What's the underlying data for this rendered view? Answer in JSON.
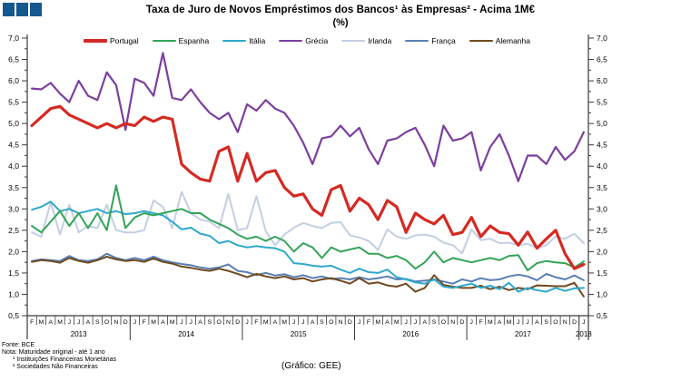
{
  "logo_color": "#15578F",
  "title": {
    "line1": "Taxa de Juro de Novos Empréstimos dos Bancos¹ às Empresas² - Acima 1M€",
    "line2": "(%)"
  },
  "footer": {
    "fonte": "Fonte: BCE",
    "nota": "Nota: Maturidade original - até 1 ano",
    "nota1": "¹ Instituições Financeiras Monetárias",
    "nota2": "² Sociedades Não Financeiras",
    "grafico": "(Gráfico: GEE)"
  },
  "chart_data": {
    "type": "line",
    "title": "Taxa de Juro de Novos Empréstimos dos Bancos às Empresas - Acima 1M€ (%)",
    "ylabel": "",
    "xlabel": "",
    "ylim": [
      0.5,
      7.0
    ],
    "y_step": 0.5,
    "y_axis_sides": "both",
    "decimal_separator": ",",
    "grid": false,
    "legend_position": "top",
    "categories": [
      "F",
      "M",
      "A",
      "M",
      "J",
      "J",
      "A",
      "S",
      "O",
      "N",
      "D",
      "J",
      "F",
      "M",
      "A",
      "M",
      "J",
      "J",
      "A",
      "S",
      "O",
      "N",
      "D",
      "J",
      "F",
      "M",
      "A",
      "M",
      "J",
      "J",
      "A",
      "S",
      "O",
      "N",
      "D",
      "J",
      "F",
      "M",
      "A",
      "M",
      "J",
      "J",
      "A",
      "S",
      "O",
      "N",
      "D",
      "J",
      "F",
      "M",
      "A",
      "M",
      "J",
      "J",
      "A",
      "S",
      "O",
      "N",
      "D",
      "J"
    ],
    "year_groups": [
      {
        "label": "2013",
        "months": 11
      },
      {
        "label": "2014",
        "months": 12
      },
      {
        "label": "2015",
        "months": 12
      },
      {
        "label": "2016",
        "months": 12
      },
      {
        "label": "2017",
        "months": 12
      },
      {
        "label": "2018",
        "months": 1
      }
    ],
    "series": [
      {
        "name": "Portugal",
        "color": "#D42A22",
        "width": 3.2,
        "values": [
          4.95,
          5.15,
          5.35,
          5.4,
          5.2,
          5.1,
          5.0,
          4.9,
          5.0,
          4.9,
          5.0,
          4.95,
          5.15,
          5.05,
          5.15,
          5.1,
          4.05,
          3.85,
          3.7,
          3.65,
          4.35,
          4.45,
          3.65,
          4.3,
          3.65,
          3.85,
          3.9,
          3.5,
          3.3,
          3.35,
          3.0,
          2.85,
          3.45,
          3.55,
          2.95,
          3.25,
          3.1,
          2.75,
          3.2,
          3.05,
          2.45,
          2.9,
          2.75,
          2.65,
          2.85,
          2.4,
          2.45,
          2.8,
          2.35,
          2.6,
          2.45,
          2.42,
          2.15,
          2.46,
          2.08,
          2.3,
          2.5,
          1.95,
          1.6,
          1.7
        ]
      },
      {
        "name": "Espanha",
        "color": "#33A457",
        "width": 2,
        "values": [
          2.6,
          2.45,
          2.7,
          2.95,
          2.6,
          2.9,
          2.55,
          2.9,
          2.5,
          3.55,
          2.55,
          2.8,
          2.9,
          2.85,
          2.9,
          2.95,
          3.0,
          2.9,
          2.9,
          2.75,
          2.65,
          2.55,
          2.4,
          2.3,
          2.35,
          2.25,
          2.35,
          2.25,
          2.0,
          2.2,
          2.1,
          1.85,
          2.1,
          2.0,
          2.05,
          2.1,
          1.95,
          1.95,
          1.85,
          1.9,
          1.8,
          1.6,
          1.75,
          2.0,
          1.75,
          1.85,
          1.8,
          1.75,
          1.8,
          1.85,
          1.8,
          1.9,
          1.92,
          1.56,
          1.73,
          1.78,
          1.75,
          1.73,
          1.63,
          1.77
        ]
      },
      {
        "name": "Itália",
        "color": "#2FA9CC",
        "width": 2,
        "values": [
          2.98,
          3.05,
          3.17,
          2.95,
          3.0,
          2.9,
          2.95,
          3.0,
          2.9,
          2.95,
          2.88,
          2.9,
          2.95,
          2.9,
          2.85,
          2.7,
          2.52,
          2.56,
          2.42,
          2.37,
          2.2,
          2.25,
          2.15,
          2.1,
          2.13,
          2.1,
          2.08,
          2.0,
          1.73,
          1.71,
          1.67,
          1.65,
          1.67,
          1.58,
          1.5,
          1.6,
          1.52,
          1.5,
          1.58,
          1.4,
          1.35,
          1.28,
          1.25,
          1.35,
          1.18,
          1.15,
          1.2,
          1.25,
          1.15,
          1.2,
          1.12,
          1.27,
          1.06,
          1.15,
          1.1,
          1.06,
          1.15,
          1.08,
          1.14,
          1.15
        ]
      },
      {
        "name": "Grécia",
        "color": "#7C3F9E",
        "width": 2.2,
        "values": [
          5.82,
          5.8,
          5.95,
          5.7,
          5.5,
          6.0,
          5.65,
          5.55,
          6.2,
          5.9,
          4.85,
          6.05,
          5.95,
          5.65,
          6.65,
          5.6,
          5.55,
          5.8,
          5.5,
          5.25,
          5.1,
          5.25,
          4.8,
          5.45,
          5.3,
          5.55,
          5.35,
          5.25,
          4.95,
          4.55,
          4.05,
          4.65,
          4.7,
          4.95,
          4.7,
          4.9,
          4.4,
          4.05,
          4.6,
          4.65,
          4.8,
          4.9,
          4.5,
          4.0,
          4.95,
          4.6,
          4.65,
          4.8,
          3.9,
          4.45,
          4.75,
          4.25,
          3.65,
          4.25,
          4.25,
          4.05,
          4.45,
          4.15,
          4.35,
          4.8
        ]
      },
      {
        "name": "Irlanda",
        "color": "#C3CFE3",
        "width": 2,
        "values": [
          2.45,
          2.35,
          3.15,
          2.4,
          3.1,
          2.45,
          2.6,
          2.55,
          3.1,
          2.5,
          2.45,
          2.45,
          2.5,
          3.2,
          3.05,
          2.55,
          3.4,
          2.9,
          2.75,
          2.7,
          2.55,
          3.35,
          2.5,
          2.55,
          3.3,
          2.48,
          2.15,
          2.4,
          2.56,
          2.67,
          2.6,
          2.55,
          2.67,
          2.69,
          2.38,
          2.33,
          2.25,
          2.04,
          2.52,
          2.35,
          2.3,
          2.38,
          2.4,
          2.35,
          2.21,
          2.15,
          1.96,
          2.52,
          2.27,
          2.3,
          2.2,
          2.21,
          2.15,
          2.18,
          2.08,
          2.15,
          2.35,
          2.3,
          2.42,
          2.2
        ]
      },
      {
        "name": "França",
        "color": "#5A7FB4",
        "width": 2,
        "values": [
          1.78,
          1.82,
          1.8,
          1.78,
          1.9,
          1.8,
          1.78,
          1.82,
          1.95,
          1.85,
          1.8,
          1.85,
          1.8,
          1.88,
          1.8,
          1.75,
          1.71,
          1.68,
          1.63,
          1.6,
          1.63,
          1.7,
          1.55,
          1.52,
          1.45,
          1.5,
          1.44,
          1.47,
          1.4,
          1.45,
          1.38,
          1.42,
          1.36,
          1.38,
          1.35,
          1.4,
          1.35,
          1.38,
          1.42,
          1.35,
          1.36,
          1.3,
          1.32,
          1.35,
          1.3,
          1.25,
          1.35,
          1.3,
          1.38,
          1.33,
          1.35,
          1.42,
          1.46,
          1.42,
          1.33,
          1.48,
          1.4,
          1.35,
          1.44,
          1.33
        ]
      },
      {
        "name": "Alemanha",
        "color": "#6F4A1D",
        "width": 2,
        "values": [
          1.76,
          1.8,
          1.78,
          1.74,
          1.85,
          1.78,
          1.74,
          1.8,
          1.88,
          1.82,
          1.78,
          1.8,
          1.76,
          1.84,
          1.76,
          1.72,
          1.65,
          1.62,
          1.58,
          1.55,
          1.6,
          1.55,
          1.48,
          1.4,
          1.48,
          1.42,
          1.38,
          1.42,
          1.35,
          1.38,
          1.3,
          1.35,
          1.38,
          1.32,
          1.25,
          1.38,
          1.25,
          1.28,
          1.21,
          1.18,
          1.25,
          1.06,
          1.15,
          1.45,
          1.22,
          1.18,
          1.15,
          1.15,
          1.2,
          1.12,
          1.18,
          1.1,
          1.15,
          1.12,
          1.21,
          1.2,
          1.19,
          1.19,
          1.27,
          0.95
        ]
      }
    ]
  }
}
